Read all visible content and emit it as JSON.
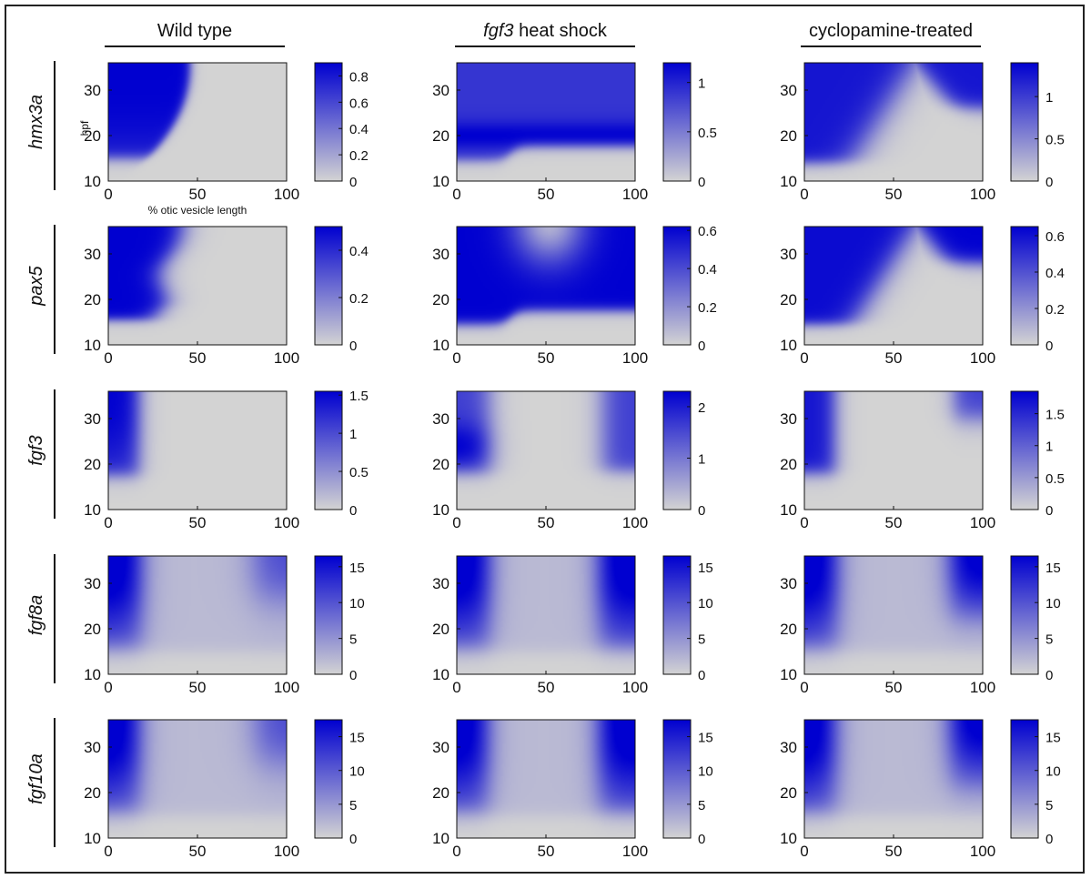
{
  "columns": [
    "Wild type",
    "heat shock",
    "cyclopamine-treated"
  ],
  "column_italic_prefix": [
    "",
    "fgf3",
    ""
  ],
  "rows": [
    "hmx3a",
    "pax5",
    "fgf3",
    "fgf8a",
    "fgf10a"
  ],
  "ylabel": "hpf",
  "xlabel": "% otic vesicle length",
  "colors": {
    "low": "#d3d3d3",
    "high": "#0000d0",
    "frame": "#222222"
  },
  "chart_data": [
    {
      "type": "heatmap",
      "gene": "hmx3a",
      "condition": "Wild type",
      "xlim": [
        0,
        100
      ],
      "ylim": [
        10,
        36
      ],
      "xticks": [
        0,
        50,
        100
      ],
      "yticks": [
        10,
        20,
        30
      ],
      "xlabel": "% otic vesicle length",
      "ylabel": "hpf",
      "colorbar": {
        "max": 0.9,
        "ticks": [
          0,
          0.2,
          0.4,
          0.6,
          0.8
        ]
      }
    },
    {
      "type": "heatmap",
      "gene": "hmx3a",
      "condition": "fgf3 heat shock",
      "xlim": [
        0,
        100
      ],
      "ylim": [
        10,
        36
      ],
      "xticks": [
        0,
        50,
        100
      ],
      "yticks": [
        10,
        20,
        30
      ],
      "colorbar": {
        "max": 1.2,
        "ticks": [
          0,
          0.5,
          1
        ]
      }
    },
    {
      "type": "heatmap",
      "gene": "hmx3a",
      "condition": "cyclopamine-treated",
      "xlim": [
        0,
        100
      ],
      "ylim": [
        10,
        36
      ],
      "xticks": [
        0,
        50,
        100
      ],
      "yticks": [
        10,
        20,
        30
      ],
      "colorbar": {
        "max": 1.4,
        "ticks": [
          0,
          0.5,
          1
        ]
      }
    },
    {
      "type": "heatmap",
      "gene": "pax5",
      "condition": "Wild type",
      "xlim": [
        0,
        100
      ],
      "ylim": [
        10,
        36
      ],
      "xticks": [
        0,
        50,
        100
      ],
      "yticks": [
        10,
        20,
        30
      ],
      "colorbar": {
        "max": 0.5,
        "ticks": [
          0,
          0.2,
          0.4
        ]
      }
    },
    {
      "type": "heatmap",
      "gene": "pax5",
      "condition": "fgf3 heat shock",
      "xlim": [
        0,
        100
      ],
      "ylim": [
        10,
        36
      ],
      "xticks": [
        0,
        50,
        100
      ],
      "yticks": [
        10,
        20,
        30
      ],
      "colorbar": {
        "max": 0.62,
        "ticks": [
          0,
          0.2,
          0.4,
          0.6
        ]
      }
    },
    {
      "type": "heatmap",
      "gene": "pax5",
      "condition": "cyclopamine-treated",
      "xlim": [
        0,
        100
      ],
      "ylim": [
        10,
        36
      ],
      "xticks": [
        0,
        50,
        100
      ],
      "yticks": [
        10,
        20,
        30
      ],
      "colorbar": {
        "max": 0.65,
        "ticks": [
          0,
          0.2,
          0.4,
          0.6
        ]
      }
    },
    {
      "type": "heatmap",
      "gene": "fgf3",
      "condition": "Wild type",
      "xlim": [
        0,
        100
      ],
      "ylim": [
        10,
        36
      ],
      "xticks": [
        0,
        50,
        100
      ],
      "yticks": [
        10,
        20,
        30
      ],
      "colorbar": {
        "max": 1.55,
        "ticks": [
          0,
          0.5,
          1,
          1.5
        ]
      }
    },
    {
      "type": "heatmap",
      "gene": "fgf3",
      "condition": "fgf3 heat shock",
      "xlim": [
        0,
        100
      ],
      "ylim": [
        10,
        36
      ],
      "xticks": [
        0,
        50,
        100
      ],
      "yticks": [
        10,
        20,
        30
      ],
      "colorbar": {
        "max": 2.3,
        "ticks": [
          0,
          1,
          2
        ]
      }
    },
    {
      "type": "heatmap",
      "gene": "fgf3",
      "condition": "cyclopamine-treated",
      "xlim": [
        0,
        100
      ],
      "ylim": [
        10,
        36
      ],
      "xticks": [
        0,
        50,
        100
      ],
      "yticks": [
        10,
        20,
        30
      ],
      "colorbar": {
        "max": 1.85,
        "ticks": [
          0,
          0.5,
          1,
          1.5
        ]
      }
    },
    {
      "type": "heatmap",
      "gene": "fgf8a",
      "condition": "Wild type",
      "xlim": [
        0,
        100
      ],
      "ylim": [
        10,
        36
      ],
      "xticks": [
        0,
        50,
        100
      ],
      "yticks": [
        10,
        20,
        30
      ],
      "colorbar": {
        "max": 16.5,
        "ticks": [
          0,
          5,
          10,
          15
        ]
      }
    },
    {
      "type": "heatmap",
      "gene": "fgf8a",
      "condition": "fgf3 heat shock",
      "xlim": [
        0,
        100
      ],
      "ylim": [
        10,
        36
      ],
      "xticks": [
        0,
        50,
        100
      ],
      "yticks": [
        10,
        20,
        30
      ],
      "colorbar": {
        "max": 16.5,
        "ticks": [
          0,
          5,
          10,
          15
        ]
      }
    },
    {
      "type": "heatmap",
      "gene": "fgf8a",
      "condition": "cyclopamine-treated",
      "xlim": [
        0,
        100
      ],
      "ylim": [
        10,
        36
      ],
      "xticks": [
        0,
        50,
        100
      ],
      "yticks": [
        10,
        20,
        30
      ],
      "colorbar": {
        "max": 16.5,
        "ticks": [
          0,
          5,
          10,
          15
        ]
      }
    },
    {
      "type": "heatmap",
      "gene": "fgf10a",
      "condition": "Wild type",
      "xlim": [
        0,
        100
      ],
      "ylim": [
        10,
        36
      ],
      "xticks": [
        0,
        50,
        100
      ],
      "yticks": [
        10,
        20,
        30
      ],
      "colorbar": {
        "max": 17.5,
        "ticks": [
          0,
          5,
          10,
          15
        ]
      }
    },
    {
      "type": "heatmap",
      "gene": "fgf10a",
      "condition": "fgf3 heat shock",
      "xlim": [
        0,
        100
      ],
      "ylim": [
        10,
        36
      ],
      "xticks": [
        0,
        50,
        100
      ],
      "yticks": [
        10,
        20,
        30
      ],
      "colorbar": {
        "max": 17.5,
        "ticks": [
          0,
          5,
          10,
          15
        ]
      }
    },
    {
      "type": "heatmap",
      "gene": "fgf10a",
      "condition": "cyclopamine-treated",
      "xlim": [
        0,
        100
      ],
      "ylim": [
        10,
        36
      ],
      "xticks": [
        0,
        50,
        100
      ],
      "yticks": [
        10,
        20,
        30
      ],
      "colorbar": {
        "max": 17.5,
        "ticks": [
          0,
          5,
          10,
          15
        ]
      }
    }
  ]
}
